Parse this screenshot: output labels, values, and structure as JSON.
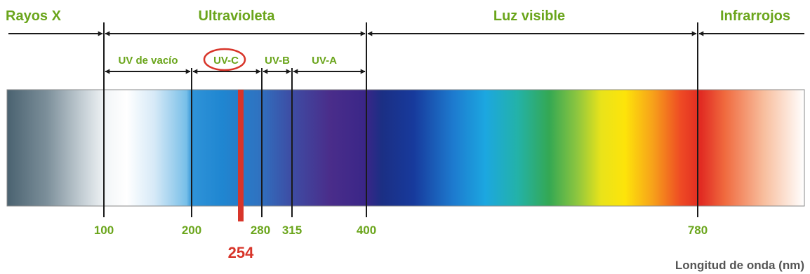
{
  "regions": {
    "xray": "Rayos X",
    "ultraviolet": "Ultravioleta",
    "visible": "Luz visible",
    "infrared": "Infrarrojos"
  },
  "subregions": {
    "vacuum_uv": "UV de vacío",
    "uvc": "UV-C",
    "uvb": "UV-B",
    "uva": "UV-A"
  },
  "ticks": {
    "t100": "100",
    "t200": "200",
    "t280": "280",
    "t315": "315",
    "t400": "400",
    "t780": "780"
  },
  "highlight": {
    "label": "254"
  },
  "axis_label": "Longitud de onda (nm)",
  "colors": {
    "label_green": "#6aa51b",
    "highlight_red": "#d8352a",
    "line_black": "#1a1a1a"
  }
}
